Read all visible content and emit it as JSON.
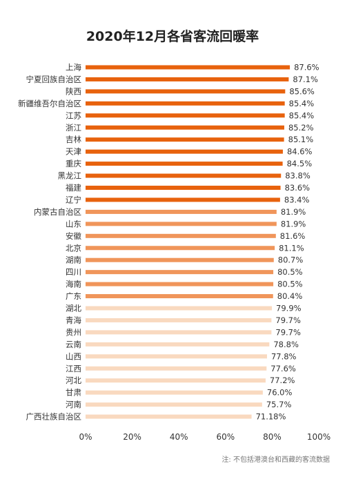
{
  "chart_data": {
    "type": "bar",
    "orientation": "horizontal",
    "title": "2020年12月各省客流回暖率",
    "categories": [
      "上海",
      "宁夏回族自治区",
      "陕西",
      "新疆维吾尔自治区",
      "江苏",
      "浙江",
      "吉林",
      "天津",
      "重庆",
      "黑龙江",
      "福建",
      "辽宁",
      "内蒙古自治区",
      "山东",
      "安徽",
      "北京",
      "湖南",
      "四川",
      "海南",
      "广东",
      "湖北",
      "青海",
      "贵州",
      "云南",
      "山西",
      "江西",
      "河北",
      "甘肃",
      "河南",
      "广西壮族自治区"
    ],
    "values": [
      87.6,
      87.1,
      85.6,
      85.4,
      85.4,
      85.2,
      85.1,
      84.6,
      84.5,
      83.8,
      83.6,
      83.4,
      81.9,
      81.9,
      81.6,
      81.1,
      80.7,
      80.5,
      80.5,
      80.4,
      79.9,
      79.7,
      79.7,
      78.8,
      77.8,
      77.6,
      77.2,
      76.0,
      75.7,
      71.18
    ],
    "value_labels": [
      "87.6%",
      "87.1%",
      "85.6%",
      "85.4%",
      "85.4%",
      "85.2%",
      "85.1%",
      "84.6%",
      "84.5%",
      "83.8%",
      "83.6%",
      "83.4%",
      "81.9%",
      "81.9%",
      "81.6%",
      "81.1%",
      "80.7%",
      "80.5%",
      "80.5%",
      "80.4%",
      "79.9%",
      "79.7%",
      "79.7%",
      "78.8%",
      "77.8%",
      "77.6%",
      "77.2%",
      "76.0%",
      "75.7%",
      "71.18%"
    ],
    "xlim": [
      0,
      100
    ],
    "xticks": [
      "0%",
      "20%",
      "40%",
      "60%",
      "80%",
      "100%"
    ],
    "grid": false,
    "color_tiers": [
      {
        "min": 83.0,
        "color": "#e8620d"
      },
      {
        "min": 80.0,
        "color": "#f0955a"
      },
      {
        "min": 0,
        "color": "#f9d9bf"
      }
    ]
  },
  "footnote": "注: 不包括港澳台和西藏的客流数据"
}
